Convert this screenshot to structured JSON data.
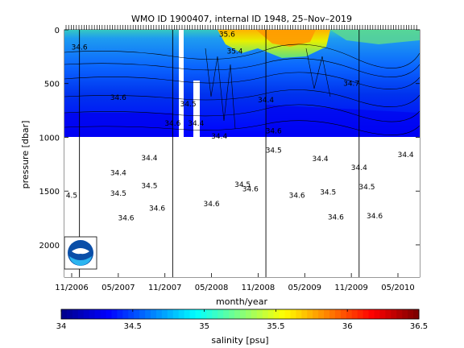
{
  "chart_data": {
    "type": "heatmap",
    "title": "WMO ID 1900407, internal ID 1948, 25–Nov–2019",
    "xlabel": "month/year",
    "ylabel": "pressure [dbar]",
    "colorbar_label": "salinity [psu]",
    "x_tick_labels": [
      "11/2006",
      "05/2007",
      "11/2007",
      "05/2008",
      "11/2008",
      "05/2009",
      "11/2009",
      "05/2010"
    ],
    "y_tick_labels": [
      "0",
      "500",
      "1000",
      "1500",
      "2000"
    ],
    "y_ticks": [
      0,
      500,
      1000,
      1500,
      2000
    ],
    "ylim": [
      2300,
      0
    ],
    "colorbar_ticks": [
      "34",
      "34.5",
      "35",
      "35.5",
      "36",
      "36.5"
    ],
    "colorbar_range": [
      34,
      36.5
    ],
    "colors": [
      "#00008f",
      "#0000ff",
      "#0080ff",
      "#00ffff",
      "#80ff80",
      "#ffff00",
      "#ff8000",
      "#ff0000",
      "#800000"
    ],
    "grid": false,
    "logo_icon": "noaa-logo-icon",
    "vertical_lines_at": [
      "12/2006",
      "12/2007",
      "12/2008",
      "12/2009"
    ],
    "profiles": [
      {
        "x_label": "11/2006",
        "depth_bottom": 980
      },
      {
        "x_label": "05/2010",
        "depth_bottom": 980
      }
    ],
    "contour_labels": [
      {
        "text": "34.6",
        "date": "12/2006",
        "p": 160
      },
      {
        "text": "34.6",
        "date": "05/2007",
        "p": 630
      },
      {
        "text": "34.6",
        "date": "12/2007",
        "p": 870
      },
      {
        "text": "34.4",
        "date": "03/2008",
        "p": 870
      },
      {
        "text": "34.5",
        "date": "02/2008",
        "p": 690
      },
      {
        "text": "34.4",
        "date": "06/2008",
        "p": 990
      },
      {
        "text": "35.4",
        "date": "08/2008",
        "p": 200
      },
      {
        "text": "35.6",
        "date": "07/2008",
        "p": 40
      },
      {
        "text": "34.4",
        "date": "12/2008",
        "p": 650
      },
      {
        "text": "34.6",
        "date": "01/2009",
        "p": 940
      },
      {
        "text": "34.5",
        "date": "01/2009",
        "p": 1120
      },
      {
        "text": "34.4",
        "date": "07/2009",
        "p": 1200
      },
      {
        "text": "34.7",
        "date": "11/2009",
        "p": 500
      },
      {
        "text": "34.4",
        "date": "05/2007",
        "p": 1330
      },
      {
        "text": "34.4",
        "date": "09/2007",
        "p": 1190
      },
      {
        "text": "34.5",
        "date": "05/2007",
        "p": 1520
      },
      {
        "text": "34.5",
        "date": "09/2007",
        "p": 1450
      },
      {
        "text": "34.6",
        "date": "06/2007",
        "p": 1750
      },
      {
        "text": "34.6",
        "date": "10/2007",
        "p": 1660
      },
      {
        "text": "34.6",
        "date": "05/2008",
        "p": 1620
      },
      {
        "text": "34.5",
        "date": "09/2008",
        "p": 1440
      },
      {
        "text": "34.6",
        "date": "10/2008",
        "p": 1480
      },
      {
        "text": "34.6",
        "date": "04/2009",
        "p": 1540
      },
      {
        "text": "34.5",
        "date": "08/2009",
        "p": 1510
      },
      {
        "text": "34.6",
        "date": "09/2009",
        "p": 1740
      },
      {
        "text": "34.4",
        "date": "12/2009",
        "p": 1280
      },
      {
        "text": "34.5",
        "date": "01/2010",
        "p": 1460
      },
      {
        "text": "34.6",
        "date": "02/2010",
        "p": 1730
      },
      {
        "text": "34.4",
        "date": "06/2010",
        "p": 1160
      },
      {
        "text": "4.5",
        "date": "11/2006",
        "p": 1540
      }
    ]
  }
}
